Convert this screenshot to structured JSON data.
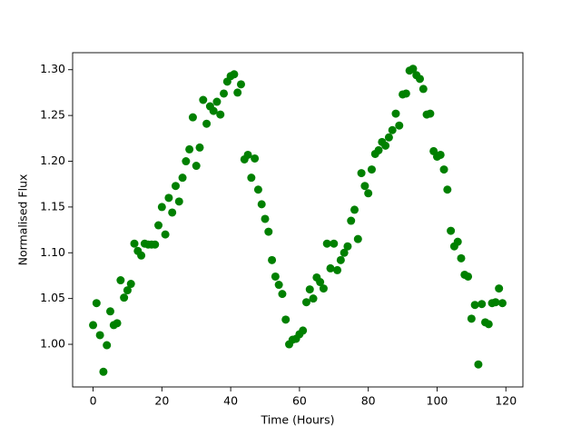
{
  "chart_data": {
    "type": "scatter",
    "color": "#008000",
    "x_label": "Time (Hours)",
    "y_label": "Normalised Flux",
    "x": [
      0,
      1,
      2,
      3,
      4,
      5,
      6,
      7,
      8,
      9,
      10,
      11,
      12,
      13,
      14,
      15,
      16,
      17,
      18,
      19,
      20,
      21,
      22,
      23,
      24,
      25,
      26,
      27,
      28,
      29,
      30,
      31,
      32,
      33,
      34,
      35,
      36,
      37,
      38,
      39,
      40,
      41,
      42,
      43,
      44,
      45,
      46,
      47,
      48,
      49,
      50,
      51,
      52,
      53,
      54,
      55,
      56,
      57,
      58,
      59,
      60,
      61,
      62,
      63,
      64,
      65,
      66,
      67,
      68,
      69,
      70,
      71,
      72,
      73,
      74,
      75,
      76,
      77,
      78,
      79,
      80,
      81,
      82,
      83,
      84,
      85,
      86,
      87,
      88,
      89,
      90,
      91,
      92,
      93,
      94,
      95,
      96,
      97,
      98,
      99,
      100,
      101,
      102,
      103,
      104,
      105,
      106,
      107,
      108,
      109,
      110,
      111,
      112,
      113,
      114,
      115,
      116,
      117,
      118,
      119
    ],
    "values": [
      1.021,
      1.045,
      1.01,
      0.97,
      0.999,
      1.036,
      1.021,
      1.023,
      1.07,
      1.051,
      1.059,
      1.066,
      1.11,
      1.102,
      1.097,
      1.11,
      1.109,
      1.109,
      1.109,
      1.13,
      1.15,
      1.12,
      1.16,
      1.144,
      1.173,
      1.156,
      1.182,
      1.2,
      1.213,
      1.248,
      1.195,
      1.215,
      1.267,
      1.241,
      1.26,
      1.255,
      1.265,
      1.251,
      1.274,
      1.287,
      1.293,
      1.295,
      1.275,
      1.284,
      1.202,
      1.207,
      1.182,
      1.203,
      1.169,
      1.153,
      1.137,
      1.123,
      1.092,
      1.074,
      1.065,
      1.055,
      1.027,
      1.0,
      1.005,
      1.006,
      1.011,
      1.015,
      1.046,
      1.06,
      1.05,
      1.073,
      1.068,
      1.061,
      1.11,
      1.083,
      1.11,
      1.081,
      1.092,
      1.1,
      1.107,
      1.135,
      1.147,
      1.115,
      1.187,
      1.173,
      1.165,
      1.191,
      1.208,
      1.212,
      1.221,
      1.217,
      1.226,
      1.234,
      1.252,
      1.239,
      1.273,
      1.274,
      1.299,
      1.301,
      1.294,
      1.29,
      1.279,
      1.251,
      1.252,
      1.211,
      1.205,
      1.207,
      1.191,
      1.169,
      1.124,
      1.107,
      1.112,
      1.094,
      1.076,
      1.074,
      1.028,
      1.043,
      0.978,
      1.044,
      1.024,
      1.022,
      1.045,
      1.046,
      1.061,
      1.045
    ],
    "xlim": [
      -5.95,
      124.95
    ],
    "xticks": [
      0,
      20,
      40,
      60,
      80,
      100,
      120
    ],
    "ylim": [
      0.9534,
      1.3186
    ],
    "yticks": [
      {
        "value": 1.0,
        "label": "1.00"
      },
      {
        "value": 1.05,
        "label": "1.05"
      },
      {
        "value": 1.1,
        "label": "1.10"
      },
      {
        "value": 1.15,
        "label": "1.15"
      },
      {
        "value": 1.2,
        "label": "1.20"
      },
      {
        "value": 1.25,
        "label": "1.25"
      },
      {
        "value": 1.3,
        "label": "1.30"
      }
    ],
    "grid": false
  }
}
